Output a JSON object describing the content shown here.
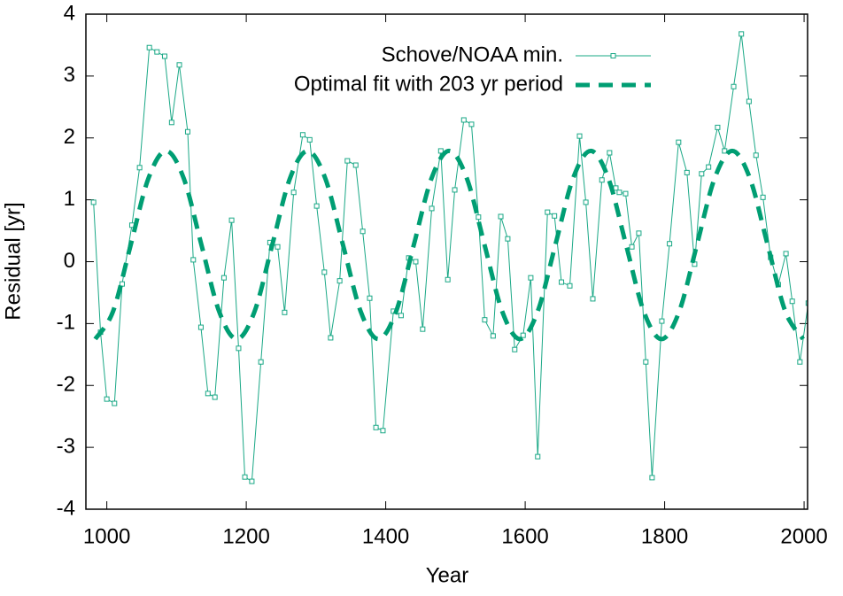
{
  "chart_data": {
    "type": "line",
    "x_label": "Year",
    "y_label": "Residual [yr]",
    "xlim": [
      970,
      2005
    ],
    "ylim": [
      -4,
      4
    ],
    "xticks": [
      1000,
      1200,
      1400,
      1600,
      1800,
      2000
    ],
    "yticks": [
      -4,
      -3,
      -2,
      -1,
      0,
      1,
      2,
      3,
      4
    ],
    "legend": "top right",
    "series": [
      {
        "name": "Schove/NOAA min.",
        "color": "#1aa886",
        "style": "line-markers",
        "x": [
          981,
          991,
          1000,
          1011,
          1022,
          1036,
          1047,
          1061,
          1072,
          1083,
          1093,
          1104,
          1116,
          1124,
          1135,
          1145,
          1155,
          1168,
          1179,
          1189,
          1198,
          1208,
          1221,
          1234,
          1245,
          1255,
          1268,
          1281,
          1291,
          1301,
          1312,
          1321,
          1334,
          1345,
          1357,
          1367,
          1377,
          1386,
          1396,
          1411,
          1422,
          1433,
          1443,
          1453,
          1466,
          1479,
          1489,
          1499,
          1512,
          1523,
          1533,
          1542,
          1554,
          1565,
          1575,
          1585,
          1597,
          1608,
          1618,
          1632,
          1642,
          1652,
          1664,
          1678,
          1687,
          1697,
          1710,
          1721,
          1730,
          1735,
          1744,
          1753,
          1763,
          1773,
          1782,
          1796,
          1807,
          1820,
          1832,
          1843,
          1853,
          1863,
          1876,
          1886,
          1899,
          1910,
          1921,
          1931,
          1941,
          1952,
          1963,
          1974,
          1983,
          1994,
          2006
        ],
        "values": [
          0.96,
          -1.14,
          -2.22,
          -2.29,
          -0.36,
          0.59,
          1.52,
          3.46,
          3.39,
          3.32,
          2.25,
          3.18,
          2.1,
          0.03,
          -1.06,
          -2.13,
          -2.19,
          -0.26,
          0.67,
          -1.4,
          -3.48,
          -3.55,
          -1.62,
          0.31,
          0.24,
          -0.82,
          1.12,
          2.05,
          1.97,
          0.9,
          -0.17,
          -1.23,
          -0.31,
          1.63,
          1.56,
          0.49,
          -0.59,
          -2.68,
          -2.73,
          -0.8,
          -0.87,
          0.06,
          0.0,
          -1.09,
          0.86,
          1.79,
          -0.29,
          1.16,
          2.29,
          2.22,
          0.72,
          -0.94,
          -1.2,
          0.73,
          0.37,
          -1.42,
          -1.19,
          -0.26,
          -3.15,
          0.8,
          0.74,
          -0.33,
          -0.39,
          2.03,
          0.96,
          -0.6,
          1.32,
          1.76,
          1.19,
          1.12,
          1.1,
          0.24,
          0.46,
          -1.62,
          -3.49,
          -0.96,
          0.29,
          1.93,
          1.44,
          -0.04,
          1.42,
          1.53,
          2.17,
          1.79,
          2.83,
          3.68,
          2.59,
          1.72,
          1.04,
          0.07,
          -0.37,
          0.13,
          -0.64,
          -1.62,
          -0.67
        ]
      },
      {
        "name": "Optimal fit with 203 yr period",
        "color": "#009e73",
        "style": "dashed",
        "x": [
          983.5,
          1008.875,
          1034.25,
          1059.625,
          1085,
          1110.375,
          1135.75,
          1161.125,
          1186.5,
          1211.875,
          1237.25,
          1262.625,
          1288,
          1313.375,
          1338.75,
          1364.125,
          1389.5,
          1414.875,
          1440.25,
          1465.625,
          1491,
          1516.375,
          1541.75,
          1567.125,
          1592.5,
          1617.875,
          1643.25,
          1668.625,
          1694,
          1719.375,
          1744.75,
          1770.125,
          1795.5,
          1820.875,
          1846.25,
          1871.625,
          1897,
          1922.375,
          1947.75,
          1973.125,
          1998.5
        ],
        "values": [
          -1.25,
          -0.805,
          0.27,
          1.345,
          1.79,
          1.345,
          0.27,
          -0.805,
          -1.25,
          -0.805,
          0.27,
          1.345,
          1.79,
          1.345,
          0.27,
          -0.805,
          -1.25,
          -0.805,
          0.27,
          1.345,
          1.79,
          1.345,
          0.27,
          -0.805,
          -1.25,
          -0.805,
          0.27,
          1.345,
          1.79,
          1.345,
          0.27,
          -0.805,
          -1.25,
          -0.805,
          0.27,
          1.345,
          1.79,
          1.345,
          0.27,
          -0.805,
          -1.25
        ]
      }
    ]
  }
}
